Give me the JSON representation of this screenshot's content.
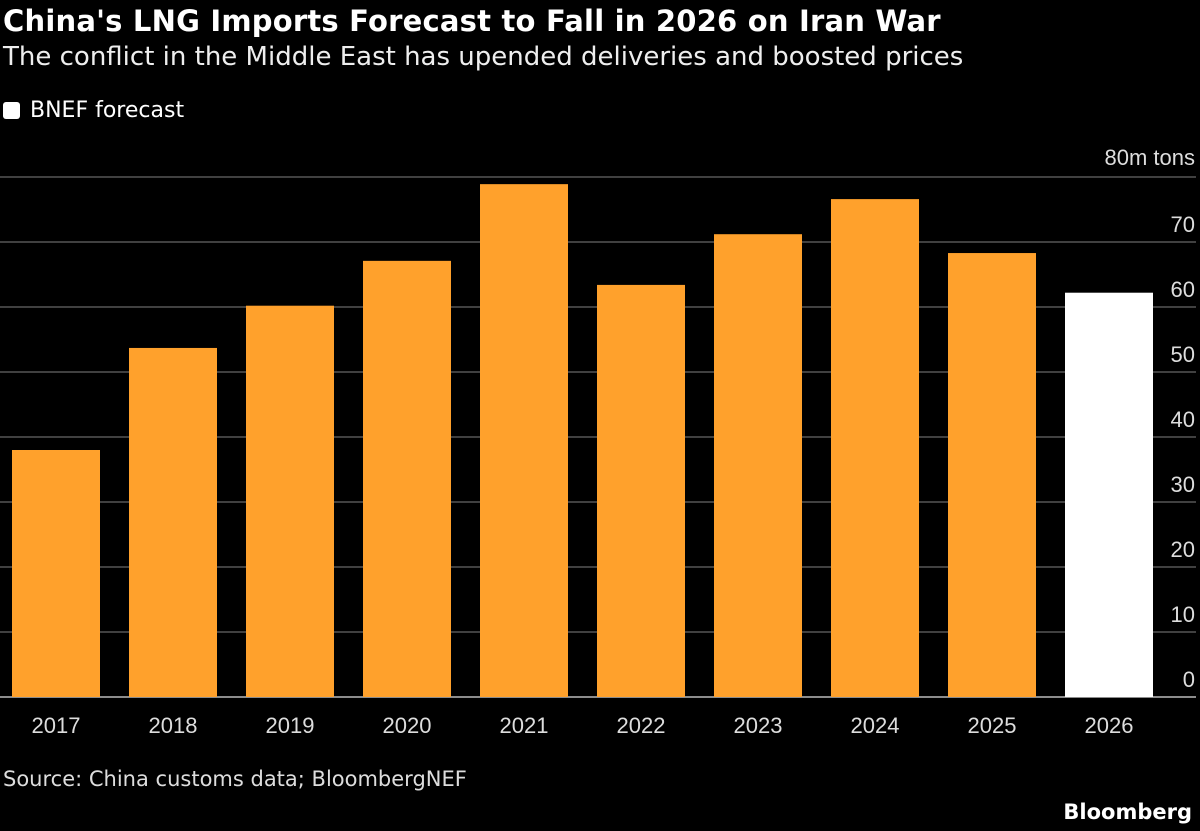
{
  "header": {
    "title": "China's LNG Imports Forecast to Fall in 2026 on Iran War",
    "subtitle": "The conflict in the Middle East has upended deliveries and boosted prices"
  },
  "legend": {
    "label": "BNEF forecast",
    "color": "#FFFFFF"
  },
  "footer": {
    "source": "Source: China customs data; BloombergNEF",
    "brand": "Bloomberg"
  },
  "colors": {
    "actual": "#FFA12C",
    "forecast": "#FFFFFF",
    "grid": "#555555",
    "background": "#000000"
  },
  "chart_data": {
    "type": "bar",
    "title": "China's LNG Imports Forecast to Fall in 2026 on Iran War",
    "subtitle": "The conflict in the Middle East has upended deliveries and boosted prices",
    "categories": [
      "2017",
      "2018",
      "2019",
      "2020",
      "2021",
      "2022",
      "2023",
      "2024",
      "2025",
      "2026"
    ],
    "values": [
      38.0,
      53.7,
      60.2,
      67.1,
      78.9,
      63.4,
      71.2,
      76.6,
      68.3,
      62.2
    ],
    "forecast": [
      false,
      false,
      false,
      false,
      false,
      false,
      false,
      false,
      false,
      true
    ],
    "unit_label": "80m tons",
    "yticks": [
      0,
      10,
      20,
      30,
      40,
      50,
      60,
      70,
      80
    ],
    "ytick_labels": [
      "0",
      "10",
      "20",
      "30",
      "40",
      "50",
      "60",
      "70",
      "80m tons"
    ],
    "ylim": [
      0,
      80
    ],
    "grid": true,
    "y_axis_side": "right",
    "legend_placement": "top-left"
  }
}
